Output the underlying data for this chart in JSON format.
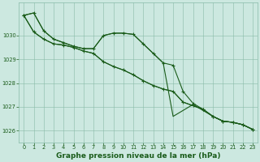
{
  "background_color": "#cce8e0",
  "grid_color": "#88bba8",
  "line_color": "#1a5c1a",
  "xlabel": "Graphe pression niveau de la mer (hPa)",
  "xlabel_fontsize": 6.5,
  "ylim": [
    1025.5,
    1031.4
  ],
  "xlim": [
    -0.5,
    23.5
  ],
  "yticks": [
    1026,
    1027,
    1028,
    1029,
    1030
  ],
  "xticks": [
    0,
    1,
    2,
    3,
    4,
    5,
    6,
    7,
    8,
    9,
    10,
    11,
    12,
    13,
    14,
    15,
    16,
    17,
    18,
    19,
    20,
    21,
    22,
    23
  ],
  "tick_fontsize": 4.8,
  "series": [
    {
      "y": [
        1030.85,
        1030.95,
        1030.2,
        1029.85,
        1029.7,
        1029.55,
        1029.45,
        1029.45,
        1030.0,
        1030.1,
        1030.1,
        1030.05,
        1029.65,
        1029.25,
        1028.85,
        1028.75,
        1027.65,
        1027.15,
        1026.9,
        1026.6,
        1026.4,
        1026.35,
        1026.25,
        1026.05
      ],
      "marker": true,
      "lw": 0.8,
      "zorder": 4
    },
    {
      "y": [
        1030.85,
        1030.95,
        1030.2,
        1029.85,
        1029.7,
        1029.55,
        1029.45,
        1029.45,
        1030.0,
        1030.1,
        1030.1,
        1030.05,
        1029.65,
        1029.25,
        1028.85,
        1026.6,
        1026.85,
        1027.1,
        1026.85,
        1026.6,
        1026.4,
        1026.35,
        1026.25,
        1026.05
      ],
      "marker": false,
      "lw": 0.8,
      "zorder": 3
    },
    {
      "y": [
        1030.85,
        1030.15,
        1029.85,
        1029.65,
        1029.6,
        1029.5,
        1029.35,
        1029.25,
        1028.9,
        1028.7,
        1028.55,
        1028.35,
        1028.1,
        1027.9,
        1027.75,
        1027.65,
        1027.2,
        1027.05,
        1026.9,
        1026.6,
        1026.4,
        1026.35,
        1026.25,
        1026.05
      ],
      "marker": true,
      "lw": 0.8,
      "zorder": 4
    },
    {
      "y": [
        1030.85,
        1030.15,
        1029.85,
        1029.65,
        1029.6,
        1029.5,
        1029.35,
        1029.25,
        1028.9,
        1028.7,
        1028.55,
        1028.35,
        1028.1,
        1027.9,
        1027.75,
        1027.65,
        1027.2,
        1027.05,
        1026.9,
        1026.6,
        1026.4,
        1026.35,
        1026.25,
        1026.05
      ],
      "marker": false,
      "lw": 0.8,
      "zorder": 2
    }
  ],
  "marker_size": 2.5,
  "markeredgewidth": 0.8
}
